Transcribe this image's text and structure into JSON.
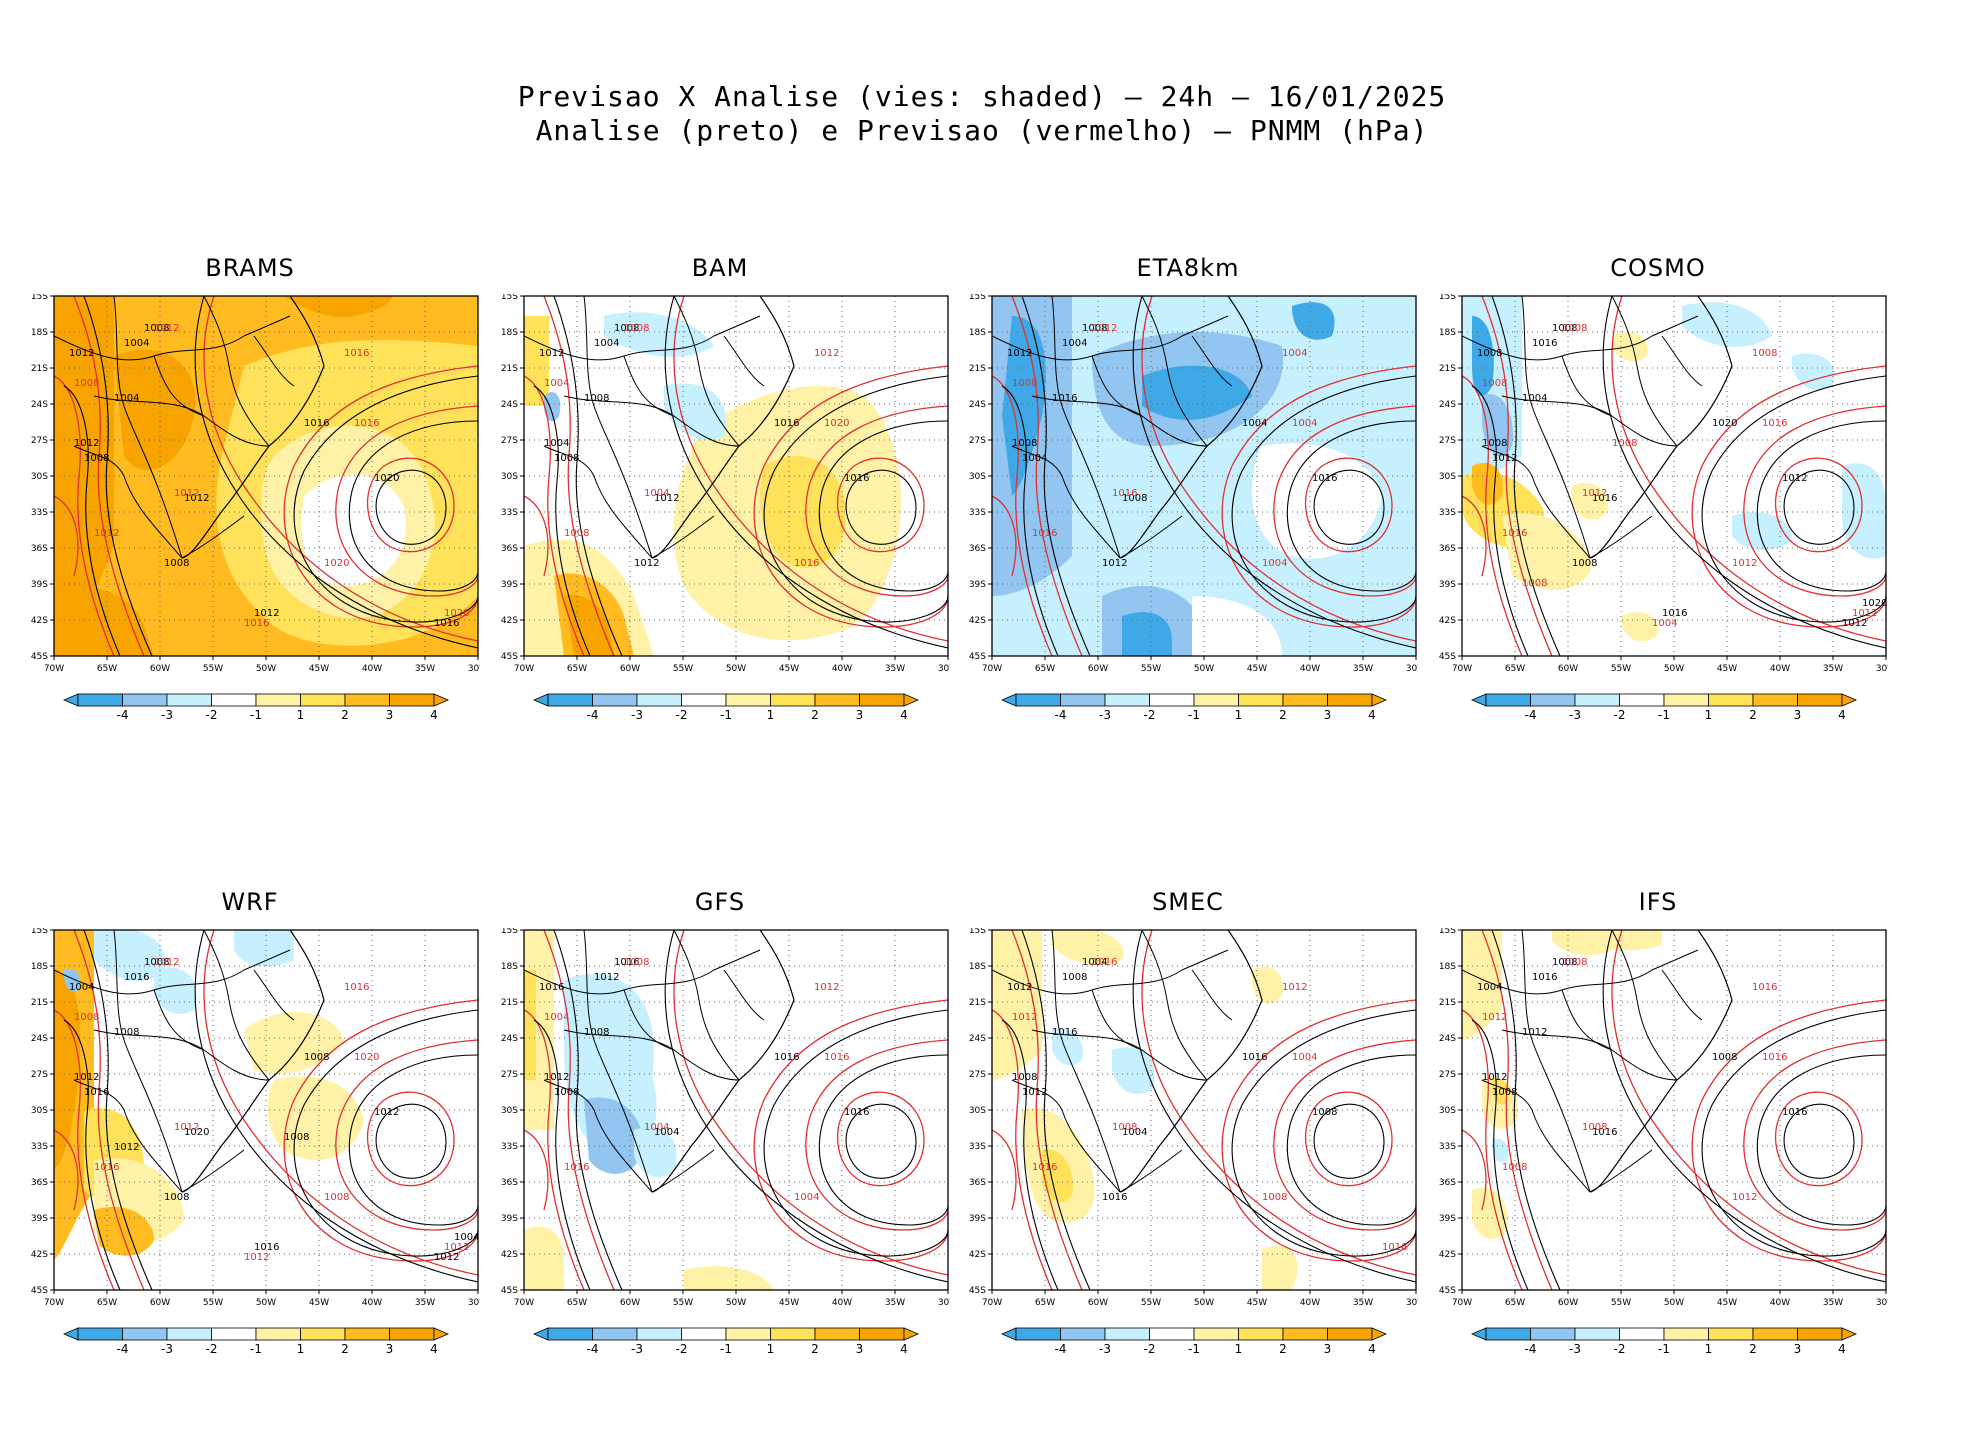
{
  "title_line1": "Previsao X Analise (vies: shaded) — 24h — 16/01/2025",
  "title_line2": "Analise (preto) e Previsao (vermelho) — PNMM (hPa)",
  "lat_labels": [
    "15S",
    "18S",
    "21S",
    "24S",
    "27S",
    "30S",
    "33S",
    "36S",
    "39S",
    "42S",
    "45S"
  ],
  "lon_labels": [
    "70W",
    "65W",
    "60W",
    "55W",
    "50W",
    "45W",
    "40W",
    "35W",
    "30W"
  ],
  "colorbar": {
    "colors": [
      "#3fa9e8",
      "#92c5f0",
      "#c7f0ff",
      "#ffffff",
      "#fff1a6",
      "#ffe15a",
      "#ffbb1f",
      "#f7a400"
    ],
    "labels": [
      "-4",
      "-3",
      "-2",
      "-1",
      "1",
      "2",
      "3",
      "4"
    ]
  },
  "colors": {
    "analysis_contour": "#000000",
    "forecast_contour": "#e03030",
    "grid": "#666666"
  },
  "panels": [
    {
      "name": "BRAMS",
      "bias": "warm-strong",
      "analysis_labels": [
        "1008",
        "1004",
        "1012",
        "1004",
        "1012",
        "1008",
        "1012",
        "1016",
        "1020",
        "1008",
        "1012",
        "1016"
      ],
      "forecast_labels": [
        "1012",
        "1008",
        "1016",
        "1012",
        "1016",
        "1020",
        "1012",
        "1020",
        "1016"
      ]
    },
    {
      "name": "BAM",
      "bias": "warm-east",
      "analysis_labels": [
        "1008",
        "1004",
        "1012",
        "1008",
        "1004",
        "1008",
        "1012",
        "1016",
        "1016",
        "1012"
      ],
      "forecast_labels": [
        "1008",
        "1004",
        "1012",
        "1004",
        "1020",
        "1016",
        "1008"
      ]
    },
    {
      "name": "ETA8km",
      "bias": "cold",
      "analysis_labels": [
        "1008",
        "1004",
        "1012",
        "1016",
        "1008",
        "1004",
        "1008",
        "1004",
        "1016",
        "1012"
      ],
      "forecast_labels": [
        "1012",
        "1008",
        "1004",
        "1016",
        "1004",
        "1004",
        "1016"
      ]
    },
    {
      "name": "COSMO",
      "bias": "mixed",
      "analysis_labels": [
        "1008",
        "1016",
        "1008",
        "1004",
        "1008",
        "1012",
        "1016",
        "1020",
        "1012",
        "1008",
        "1016",
        "1012",
        "1020"
      ],
      "forecast_labels": [
        "1008",
        "1008",
        "1008",
        "1012",
        "1016",
        "1012",
        "1016",
        "1012",
        "1004",
        "1008",
        "1008"
      ]
    },
    {
      "name": "WRF",
      "bias": "warm-west",
      "analysis_labels": [
        "1008",
        "1016",
        "1004",
        "1008",
        "1012",
        "1016",
        "1020",
        "1008",
        "1012",
        "1008",
        "1016",
        "1012",
        "1004",
        "1008",
        "1012"
      ],
      "forecast_labels": [
        "1012",
        "1008",
        "1016",
        "1012",
        "1020",
        "1008",
        "1016",
        "1012",
        "1012"
      ]
    },
    {
      "name": "GFS",
      "bias": "cold-west",
      "analysis_labels": [
        "1016",
        "1012",
        "1016",
        "1008",
        "1012",
        "1008",
        "1004",
        "1016",
        "1016"
      ],
      "forecast_labels": [
        "1008",
        "1004",
        "1012",
        "1004",
        "1016",
        "1004",
        "1016"
      ]
    },
    {
      "name": "SMEC",
      "bias": "warm-west-light",
      "analysis_labels": [
        "1004",
        "1008",
        "1012",
        "1016",
        "1008",
        "1012",
        "1004",
        "1016",
        "1008",
        "1016"
      ],
      "forecast_labels": [
        "1016",
        "1012",
        "1012",
        "1008",
        "1004",
        "1008",
        "1016",
        "1016"
      ]
    },
    {
      "name": "IFS",
      "bias": "neutral",
      "analysis_labels": [
        "1008",
        "1016",
        "1004",
        "1012",
        "1012",
        "1008",
        "1016",
        "1008",
        "1016"
      ],
      "forecast_labels": [
        "1008",
        "1012",
        "1016",
        "1008",
        "1016",
        "1012",
        "1008"
      ]
    }
  ]
}
